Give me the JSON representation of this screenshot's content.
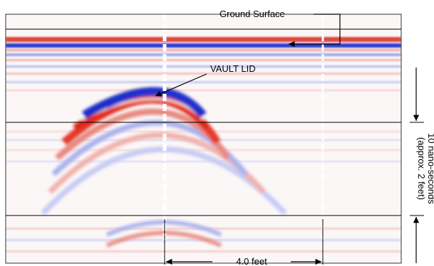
{
  "annotations": {
    "ground_surface": "Ground Surface",
    "vault_lid": "VAULT LID",
    "time_scale": "10 nano-seconds",
    "depth_scale": "(approx. 2 feet)",
    "horizontal_scale": "4.0 feet"
  }
}
